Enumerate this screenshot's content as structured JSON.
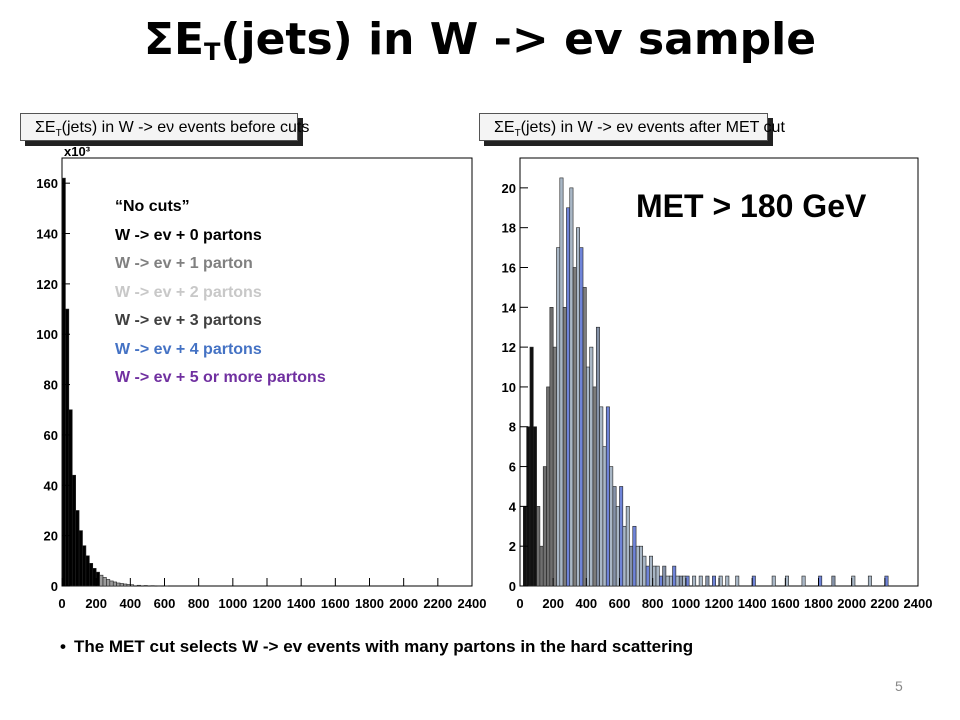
{
  "title": {
    "main": "ΣE",
    "sub": "T",
    "rest": "(jets) in W -> ev sample"
  },
  "left_panel": {
    "title_pre": "ΣE",
    "title_sub": "T",
    "title_post": "(jets) in W -> eν events before cuts",
    "exponent_label": "x10³"
  },
  "right_panel": {
    "title_pre": "ΣE",
    "title_sub": "T",
    "title_post": "(jets) in W -> eν events after MET cut",
    "annotation": "MET > 180 GeV"
  },
  "legend": {
    "items": [
      {
        "label": "“No cuts”",
        "color": "#000000"
      },
      {
        "label": "W -> ev + 0 partons",
        "color": "#000000"
      },
      {
        "label": "W -> ev + 1 parton",
        "color": "#808080"
      },
      {
        "label": "W -> ev + 2 partons",
        "color": "#c8c8c8"
      },
      {
        "label": "W -> ev + 3 partons",
        "color": "#404040"
      },
      {
        "label": "W -> ev + 4 partons",
        "color": "#4472c4"
      },
      {
        "label": "W -> ev + 5 or more partons",
        "color": "#7030a0"
      }
    ]
  },
  "note": "The MET cut selects W -> ev events with many partons in the hard scattering",
  "page_number": "5",
  "chart_data": [
    {
      "type": "bar",
      "title": "ΣET(jets) in W -> eν events before cuts",
      "xlim": [
        0,
        2400
      ],
      "ylim": [
        0,
        170
      ],
      "y_scale_note": "x10³",
      "x_ticks": [
        0,
        200,
        400,
        600,
        800,
        1000,
        1200,
        1400,
        1600,
        1800,
        2000,
        2200,
        2400
      ],
      "y_ticks": [
        0,
        20,
        40,
        60,
        80,
        100,
        120,
        140,
        160
      ],
      "bin_width": 20,
      "x": [
        0,
        20,
        40,
        60,
        80,
        100,
        120,
        140,
        160,
        180,
        200,
        220,
        240,
        260,
        280,
        300,
        320,
        340,
        360,
        380,
        400,
        440,
        480,
        520,
        560,
        600
      ],
      "values": [
        162,
        110,
        70,
        44,
        30,
        22,
        16,
        12,
        9,
        7,
        5.5,
        4.3,
        3.4,
        2.6,
        2.0,
        1.6,
        1.2,
        1.0,
        0.8,
        0.6,
        0.5,
        0.3,
        0.2,
        0.15,
        0.1,
        0.05
      ]
    },
    {
      "type": "bar",
      "title": "ΣET(jets) in W -> eν events after MET cut",
      "xlim": [
        0,
        2400
      ],
      "ylim": [
        0,
        21.5
      ],
      "x_ticks": [
        0,
        200,
        400,
        600,
        800,
        1000,
        1200,
        1400,
        1600,
        1800,
        2000,
        2200,
        2400
      ],
      "y_ticks": [
        0,
        2,
        4,
        6,
        8,
        10,
        12,
        14,
        16,
        18,
        20
      ],
      "bin_width": 20,
      "x": [
        20,
        40,
        60,
        80,
        100,
        120,
        140,
        160,
        180,
        200,
        220,
        240,
        260,
        280,
        300,
        320,
        340,
        360,
        380,
        400,
        420,
        440,
        460,
        480,
        500,
        520,
        540,
        560,
        580,
        600,
        620,
        640,
        660,
        680,
        700,
        720,
        740,
        760,
        780,
        800,
        820,
        840,
        860,
        880,
        900,
        920,
        940,
        960,
        980,
        1000,
        1040,
        1080,
        1120,
        1160,
        1200,
        1240,
        1300,
        1400,
        1520,
        1600,
        1700,
        1800,
        1880,
        2000,
        2100,
        2200
      ],
      "values": [
        4,
        8,
        12,
        8,
        4,
        2,
        6,
        10,
        14,
        12,
        17,
        20.5,
        14,
        19,
        20,
        16,
        18,
        17,
        15,
        11,
        12,
        10,
        13,
        9,
        7,
        9,
        6,
        5,
        4,
        5,
        3,
        4,
        2,
        3,
        2,
        2,
        1.5,
        1,
        1.5,
        1,
        1,
        0.5,
        1,
        0.5,
        0.5,
        1,
        0.5,
        0.5,
        0.5,
        0.5,
        0.5,
        0.5,
        0.5,
        0.5,
        0.5,
        0.5,
        0.5,
        0.5,
        0.5,
        0.5,
        0.5,
        0.5,
        0.5,
        0.5,
        0.5,
        0.5
      ]
    }
  ]
}
